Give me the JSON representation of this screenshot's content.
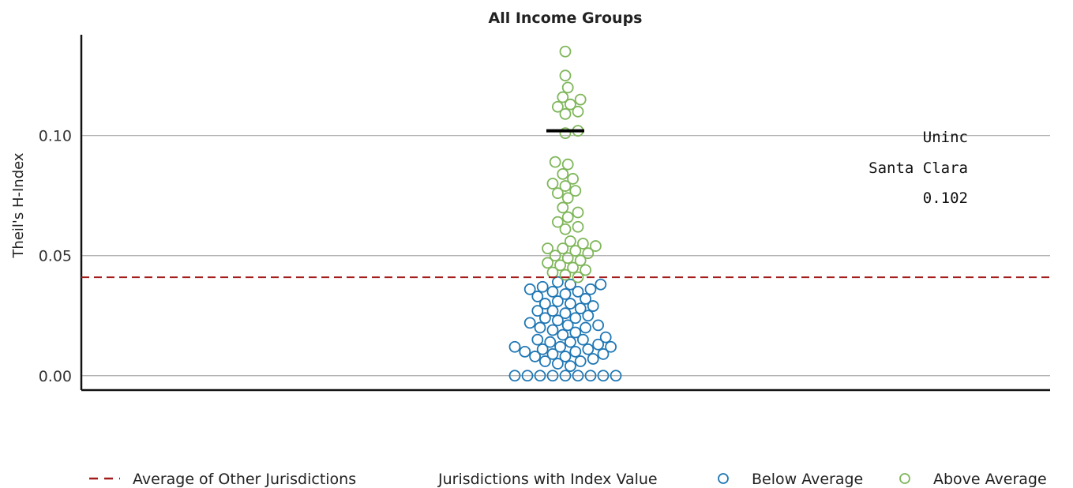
{
  "chart_data": {
    "type": "scatter",
    "title": "All Income Groups",
    "ylabel": "Theil's H-Index",
    "ylim": [
      -0.006,
      0.142
    ],
    "y_ticks": [
      0.0,
      0.05,
      0.1
    ],
    "y_tick_labels": [
      "0.00",
      "0.05",
      "0.10"
    ],
    "grid": "horizontal",
    "average_line": {
      "value": 0.041,
      "label": "Average of Other Jurisdictions",
      "color": "#a31c1c"
    },
    "highlight": {
      "value": 0.102,
      "label_lines": [
        "Uninc",
        "Santa Clara",
        "0.102"
      ]
    },
    "series": [
      {
        "name": "Below Average",
        "color": "#1f77b4",
        "values": [
          0,
          0,
          0,
          0,
          0,
          0,
          0,
          0,
          0,
          0.004,
          0.005,
          0.006,
          0.006,
          0.007,
          0.008,
          0.008,
          0.009,
          0.009,
          0.01,
          0.01,
          0.011,
          0.011,
          0.012,
          0.012,
          0.012,
          0.013,
          0.014,
          0.014,
          0.015,
          0.015,
          0.016,
          0.017,
          0.018,
          0.019,
          0.02,
          0.02,
          0.021,
          0.021,
          0.022,
          0.023,
          0.024,
          0.024,
          0.025,
          0.026,
          0.027,
          0.027,
          0.028,
          0.029,
          0.03,
          0.03,
          0.031,
          0.032,
          0.033,
          0.034,
          0.035,
          0.035,
          0.036,
          0.036,
          0.037,
          0.038,
          0.038,
          0.039
        ]
      },
      {
        "name": "Above Average",
        "color": "#7fb65a",
        "values": [
          0.041,
          0.042,
          0.043,
          0.044,
          0.045,
          0.046,
          0.047,
          0.048,
          0.049,
          0.05,
          0.051,
          0.052,
          0.053,
          0.053,
          0.054,
          0.055,
          0.056,
          0.061,
          0.062,
          0.064,
          0.066,
          0.068,
          0.07,
          0.074,
          0.076,
          0.077,
          0.079,
          0.08,
          0.082,
          0.084,
          0.088,
          0.089,
          0.101,
          0.102,
          0.109,
          0.11,
          0.112,
          0.113,
          0.115,
          0.116,
          0.12,
          0.125,
          0.135
        ]
      }
    ],
    "legend": {
      "position": "bottom",
      "avg_label": "Average of Other Jurisdictions",
      "group_label": "Jurisdictions with Index Value",
      "below_label": "Below Average",
      "above_label": "Above Average"
    }
  }
}
